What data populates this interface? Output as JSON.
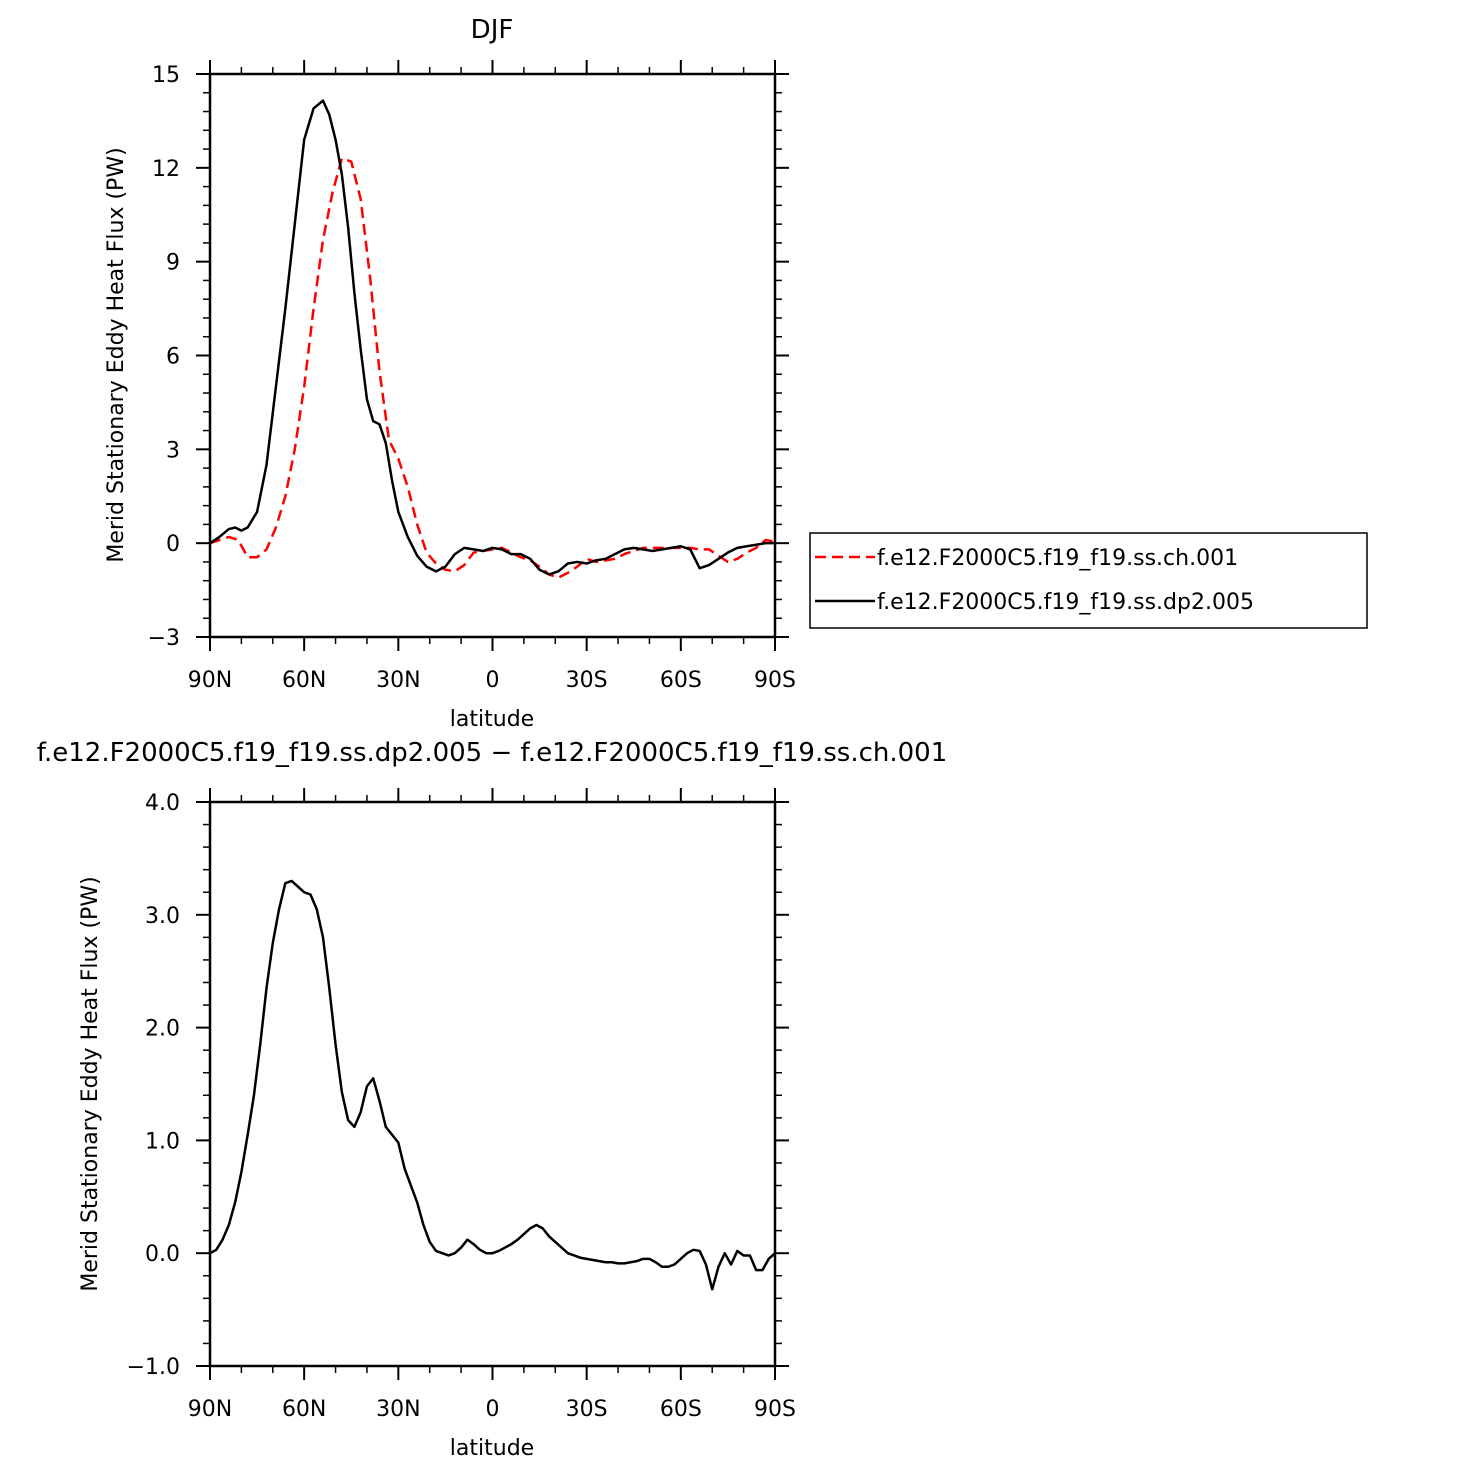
{
  "chart_data": [
    {
      "type": "line",
      "title": "DJF",
      "xlabel": "latitude",
      "ylabel": "Merid Stationary Eddy Heat Flux (PW)",
      "xlim": [
        90,
        -90
      ],
      "ylim": [
        -3,
        15
      ],
      "xticks": [
        {
          "value": 90,
          "label": "90N"
        },
        {
          "value": 60,
          "label": "60N"
        },
        {
          "value": 30,
          "label": "30N"
        },
        {
          "value": 0,
          "label": "0"
        },
        {
          "value": -30,
          "label": "30S"
        },
        {
          "value": -60,
          "label": "60S"
        },
        {
          "value": -90,
          "label": "90S"
        }
      ],
      "yticks": [
        {
          "value": -3,
          "label": "−3"
        },
        {
          "value": 0,
          "label": "0"
        },
        {
          "value": 3,
          "label": "3"
        },
        {
          "value": 6,
          "label": "6"
        },
        {
          "value": 9,
          "label": "9"
        },
        {
          "value": 12,
          "label": "12"
        },
        {
          "value": 15,
          "label": "15"
        }
      ],
      "legend_position": "right",
      "series": [
        {
          "name": "f.e12.F2000C5.f19_f19.ss.ch.001",
          "color": "#ff0000",
          "dash": "dashed",
          "x": [
            90,
            87,
            84,
            81,
            78,
            75,
            72,
            69,
            66,
            63,
            60,
            57,
            54,
            51,
            48,
            45,
            42,
            39,
            36,
            33,
            30,
            27,
            24,
            21,
            18,
            15,
            12,
            9,
            6,
            3,
            0,
            -3,
            -6,
            -9,
            -12,
            -15,
            -18,
            -21,
            -24,
            -27,
            -30,
            -33,
            -36,
            -39,
            -42,
            -45,
            -48,
            -51,
            -54,
            -57,
            -60,
            -63,
            -66,
            -69,
            -72,
            -75,
            -78,
            -81,
            -84,
            -87,
            -90
          ],
          "y": [
            0,
            0.1,
            0.2,
            0.1,
            -0.45,
            -0.45,
            -0.2,
            0.5,
            1.5,
            3.0,
            5.0,
            7.5,
            9.7,
            11.2,
            12.3,
            12.2,
            11.0,
            8.5,
            5.5,
            3.3,
            2.7,
            1.8,
            0.6,
            -0.3,
            -0.65,
            -0.85,
            -0.9,
            -0.7,
            -0.3,
            -0.25,
            -0.2,
            -0.15,
            -0.3,
            -0.45,
            -0.55,
            -0.75,
            -1.0,
            -1.1,
            -0.95,
            -0.75,
            -0.5,
            -0.6,
            -0.55,
            -0.5,
            -0.35,
            -0.25,
            -0.15,
            -0.15,
            -0.15,
            -0.15,
            -0.15,
            -0.15,
            -0.2,
            -0.2,
            -0.4,
            -0.6,
            -0.5,
            -0.3,
            -0.15,
            0.1,
            0.05
          ]
        },
        {
          "name": "f.e12.F2000C5.f19_f19.ss.dp2.005",
          "color": "#000000",
          "dash": "solid",
          "x": [
            90,
            87,
            84,
            82,
            80,
            78,
            75,
            72,
            69,
            66,
            63,
            60,
            57,
            54,
            52,
            50,
            48,
            46,
            44,
            42,
            40,
            38,
            36,
            34,
            32,
            30,
            27,
            24,
            21,
            18,
            15,
            12,
            9,
            6,
            3,
            0,
            -3,
            -6,
            -9,
            -12,
            -15,
            -18,
            -21,
            -24,
            -27,
            -30,
            -33,
            -36,
            -39,
            -42,
            -45,
            -48,
            -51,
            -54,
            -57,
            -60,
            -63,
            -66,
            -69,
            -72,
            -75,
            -78,
            -81,
            -84,
            -87,
            -90
          ],
          "y": [
            0,
            0.2,
            0.45,
            0.5,
            0.4,
            0.5,
            1.0,
            2.5,
            5.0,
            7.5,
            10.2,
            12.9,
            13.9,
            14.15,
            13.7,
            12.9,
            11.8,
            10.1,
            8.0,
            6.2,
            4.6,
            3.9,
            3.8,
            3.2,
            2.0,
            1.0,
            0.2,
            -0.4,
            -0.75,
            -0.9,
            -0.75,
            -0.35,
            -0.15,
            -0.2,
            -0.25,
            -0.15,
            -0.2,
            -0.35,
            -0.35,
            -0.5,
            -0.85,
            -1.0,
            -0.9,
            -0.65,
            -0.6,
            -0.65,
            -0.55,
            -0.5,
            -0.35,
            -0.2,
            -0.15,
            -0.2,
            -0.25,
            -0.2,
            -0.15,
            -0.1,
            -0.2,
            -0.8,
            -0.7,
            -0.5,
            -0.3,
            -0.15,
            -0.1,
            -0.05,
            0,
            0
          ]
        }
      ]
    },
    {
      "type": "line",
      "title": "f.e12.F2000C5.f19_f19.ss.dp2.005 − f.e12.F2000C5.f19_f19.ss.ch.001",
      "xlabel": "latitude",
      "ylabel": "Merid Stationary Eddy Heat Flux (PW)",
      "xlim": [
        90,
        -90
      ],
      "ylim": [
        -1.0,
        4.0
      ],
      "xticks": [
        {
          "value": 90,
          "label": "90N"
        },
        {
          "value": 60,
          "label": "60N"
        },
        {
          "value": 30,
          "label": "30N"
        },
        {
          "value": 0,
          "label": "0"
        },
        {
          "value": -30,
          "label": "30S"
        },
        {
          "value": -60,
          "label": "60S"
        },
        {
          "value": -90,
          "label": "90S"
        }
      ],
      "yticks": [
        {
          "value": -1.0,
          "label": "−1.0"
        },
        {
          "value": 0.0,
          "label": "0.0"
        },
        {
          "value": 1.0,
          "label": "1.0"
        },
        {
          "value": 2.0,
          "label": "2.0"
        },
        {
          "value": 3.0,
          "label": "3.0"
        },
        {
          "value": 4.0,
          "label": "4.0"
        }
      ],
      "series": [
        {
          "color": "#000000",
          "dash": "solid",
          "x": [
            90,
            88,
            86,
            84,
            82,
            80,
            78,
            76,
            74,
            72,
            70,
            68,
            66,
            64,
            62,
            60,
            58,
            56,
            54,
            52,
            50,
            48,
            46,
            44,
            42,
            40,
            38,
            36,
            34,
            32,
            30,
            28,
            26,
            24,
            22,
            20,
            18,
            16,
            14,
            12,
            10,
            8,
            6,
            4,
            2,
            0,
            -2,
            -4,
            -6,
            -8,
            -10,
            -12,
            -14,
            -16,
            -18,
            -20,
            -22,
            -24,
            -26,
            -28,
            -30,
            -32,
            -34,
            -36,
            -38,
            -40,
            -42,
            -44,
            -46,
            -48,
            -50,
            -52,
            -54,
            -56,
            -58,
            -60,
            -62,
            -64,
            -66,
            -68,
            -70,
            -72,
            -74,
            -76,
            -78,
            -80,
            -82,
            -84,
            -86,
            -88,
            -90
          ],
          "y": [
            0,
            0.03,
            0.12,
            0.25,
            0.45,
            0.72,
            1.05,
            1.4,
            1.85,
            2.35,
            2.75,
            3.05,
            3.28,
            3.3,
            3.25,
            3.2,
            3.18,
            3.05,
            2.8,
            2.35,
            1.85,
            1.43,
            1.18,
            1.12,
            1.25,
            1.48,
            1.55,
            1.35,
            1.12,
            1.05,
            0.98,
            0.75,
            0.6,
            0.45,
            0.25,
            0.1,
            0.02,
            0.0,
            -0.02,
            0.0,
            0.05,
            0.12,
            0.08,
            0.03,
            0.0,
            0.0,
            0.02,
            0.05,
            0.08,
            0.12,
            0.17,
            0.22,
            0.25,
            0.22,
            0.15,
            0.1,
            0.05,
            0.0,
            -0.02,
            -0.04,
            -0.05,
            -0.06,
            -0.07,
            -0.08,
            -0.08,
            -0.09,
            -0.09,
            -0.08,
            -0.07,
            -0.05,
            -0.05,
            -0.08,
            -0.12,
            -0.12,
            -0.1,
            -0.05,
            0.0,
            0.03,
            0.02,
            -0.1,
            -0.32,
            -0.12,
            0.0,
            -0.1,
            0.02,
            -0.02,
            -0.02,
            -0.15,
            -0.15,
            -0.05,
            0.0
          ]
        }
      ]
    }
  ]
}
